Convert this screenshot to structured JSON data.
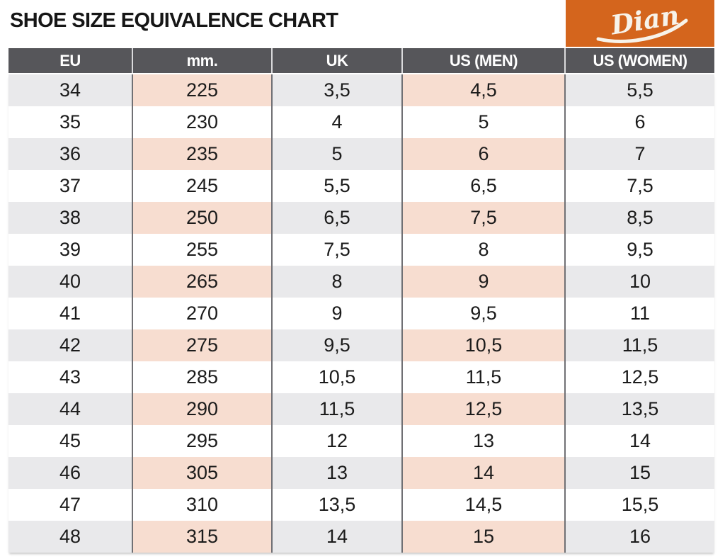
{
  "page": {
    "title": "SHOE SIZE EQUIVALENCE CHART"
  },
  "logo": {
    "brand": "Dian",
    "background": "#D4651D",
    "text_color": "#F7F3EA"
  },
  "colors": {
    "header_bg": "#56565A",
    "header_text": "#FFFFFF",
    "stripe_gray": "#E9E9EB",
    "stripe_peach": "#F7DDD0",
    "body_text": "#1B1B1B",
    "column_border": "#707074",
    "accent_orange": "#D4651D"
  },
  "chart_data": {
    "type": "table",
    "title": "SHOE SIZE EQUIVALENCE CHART",
    "columns": [
      "EU",
      "mm.",
      "UK",
      "US (MEN)",
      "US (WOMEN)"
    ],
    "rows": [
      [
        "34",
        "225",
        "3,5",
        "4,5",
        "5,5"
      ],
      [
        "35",
        "230",
        "4",
        "5",
        "6"
      ],
      [
        "36",
        "235",
        "5",
        "6",
        "7"
      ],
      [
        "37",
        "245",
        "5,5",
        "6,5",
        "7,5"
      ],
      [
        "38",
        "250",
        "6,5",
        "7,5",
        "8,5"
      ],
      [
        "39",
        "255",
        "7,5",
        "8",
        "9,5"
      ],
      [
        "40",
        "265",
        "8",
        "9",
        "10"
      ],
      [
        "41",
        "270",
        "9",
        "9,5",
        "11"
      ],
      [
        "42",
        "275",
        "9,5",
        "10,5",
        "11,5"
      ],
      [
        "43",
        "285",
        "10,5",
        "11,5",
        "12,5"
      ],
      [
        "44",
        "290",
        "11,5",
        "12,5",
        "13,5"
      ],
      [
        "45",
        "295",
        "12",
        "13",
        "14"
      ],
      [
        "46",
        "305",
        "13",
        "14",
        "15"
      ],
      [
        "47",
        "310",
        "13,5",
        "14,5",
        "15,5"
      ],
      [
        "48",
        "315",
        "14",
        "15",
        "16"
      ]
    ],
    "layout": {
      "striping": "odd data rows shaded; columns mm. and US (MEN) shaded peach, others gray",
      "grid": "vertical column separators only",
      "legend": "none"
    }
  }
}
